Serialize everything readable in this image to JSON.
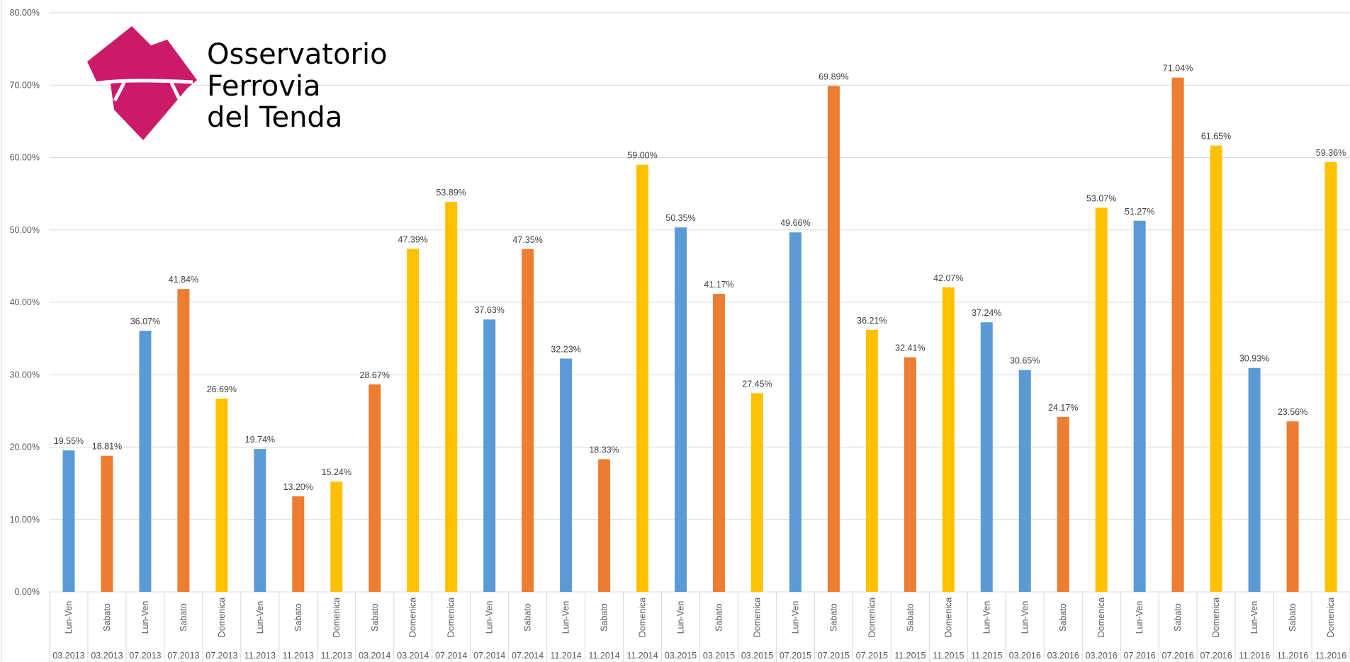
{
  "colors": {
    "Lun-Ven": "#5b9bd5",
    "Sabato": "#ed7d31",
    "Domenica": "#ffc000",
    "grid": "#d9d9d9",
    "logo": "#cc1a6a"
  },
  "logo": {
    "lines": [
      "Osservatorio",
      "Ferrovia",
      "del Tenda"
    ]
  },
  "chart_data": {
    "type": "bar",
    "title": "",
    "xlabel": "",
    "ylabel": "",
    "ylim": [
      0,
      0.8
    ],
    "y_ticks": [
      "0.00%",
      "10.00%",
      "20.00%",
      "30.00%",
      "40.00%",
      "50.00%",
      "60.00%",
      "70.00%",
      "80.00%"
    ],
    "y_tick_values": [
      0,
      0.1,
      0.2,
      0.3,
      0.4,
      0.5,
      0.6,
      0.7,
      0.8
    ],
    "grid": true,
    "legend": "none",
    "categories": [
      {
        "day": "Lun-Ven",
        "period": "03.2013"
      },
      {
        "day": "Sabato",
        "period": "03.2013"
      },
      {
        "day": "Lun-Ven",
        "period": "07.2013"
      },
      {
        "day": "Sabato",
        "period": "07.2013"
      },
      {
        "day": "Domenica",
        "period": "07.2013"
      },
      {
        "day": "Lun-Ven",
        "period": "11.2013"
      },
      {
        "day": "Sabato",
        "period": "11.2013"
      },
      {
        "day": "Domenica",
        "period": "11.2013"
      },
      {
        "day": "Sabato",
        "period": "03.2014"
      },
      {
        "day": "Domenica",
        "period": "03.2014"
      },
      {
        "day": "Domenica",
        "period": "07.2014"
      },
      {
        "day": "Lun-Ven",
        "period": "07.2014"
      },
      {
        "day": "Sabato",
        "period": "07.2014"
      },
      {
        "day": "Lun-Ven",
        "period": "11.2014"
      },
      {
        "day": "Sabato",
        "period": "11.2014"
      },
      {
        "day": "Domenica",
        "period": "11.2014"
      },
      {
        "day": "Lun-Ven",
        "period": "03.2015"
      },
      {
        "day": "Sabato",
        "period": "03.2015"
      },
      {
        "day": "Domenica",
        "period": "03.2015"
      },
      {
        "day": "Lun-Ven",
        "period": "07.2015"
      },
      {
        "day": "Sabato",
        "period": "07.2015"
      },
      {
        "day": "Domenica",
        "period": "07.2015"
      },
      {
        "day": "Sabato",
        "period": "11.2015"
      },
      {
        "day": "Domenica",
        "period": "11.2015"
      },
      {
        "day": "Lun-Ven",
        "period": "11.2015"
      },
      {
        "day": "Lun-Ven",
        "period": "03.2016"
      },
      {
        "day": "Sabato",
        "period": "03.2016"
      },
      {
        "day": "Domenica",
        "period": "03.2016"
      },
      {
        "day": "Lun-Ven",
        "period": "07.2016"
      },
      {
        "day": "Sabato",
        "period": "07.2016"
      },
      {
        "day": "Domenica",
        "period": "07.2016"
      },
      {
        "day": "Lun-Ven",
        "period": "11.2016"
      },
      {
        "day": "Sabato",
        "period": "11.2016"
      },
      {
        "day": "Domenica",
        "period": "11.2016"
      }
    ],
    "values": [
      0.1955,
      0.1881,
      0.3607,
      0.4184,
      0.2669,
      0.1974,
      0.132,
      0.1524,
      0.2867,
      0.4739,
      0.5389,
      0.3763,
      0.4735,
      0.3223,
      0.1833,
      0.59,
      0.5035,
      0.4117,
      0.2745,
      0.4966,
      0.6989,
      0.3621,
      0.3241,
      0.4207,
      0.3724,
      0.3065,
      0.2417,
      0.5307,
      0.5127,
      0.7104,
      0.6165,
      0.3093,
      0.2356,
      0.5936
    ],
    "data_labels": [
      "19.55%",
      "18.81%",
      "36.07%",
      "41.84%",
      "26.69%",
      "19.74%",
      "13.20%",
      "15.24%",
      "28.67%",
      "47.39%",
      "53.89%",
      "37.63%",
      "47.35%",
      "32.23%",
      "18.33%",
      "59.00%",
      "50.35%",
      "41.17%",
      "27.45%",
      "49.66%",
      "69.89%",
      "36.21%",
      "32.41%",
      "42.07%",
      "37.24%",
      "30.65%",
      "24.17%",
      "53.07%",
      "51.27%",
      "71.04%",
      "61.65%",
      "30.93%",
      "23.56%",
      "59.36%"
    ]
  }
}
